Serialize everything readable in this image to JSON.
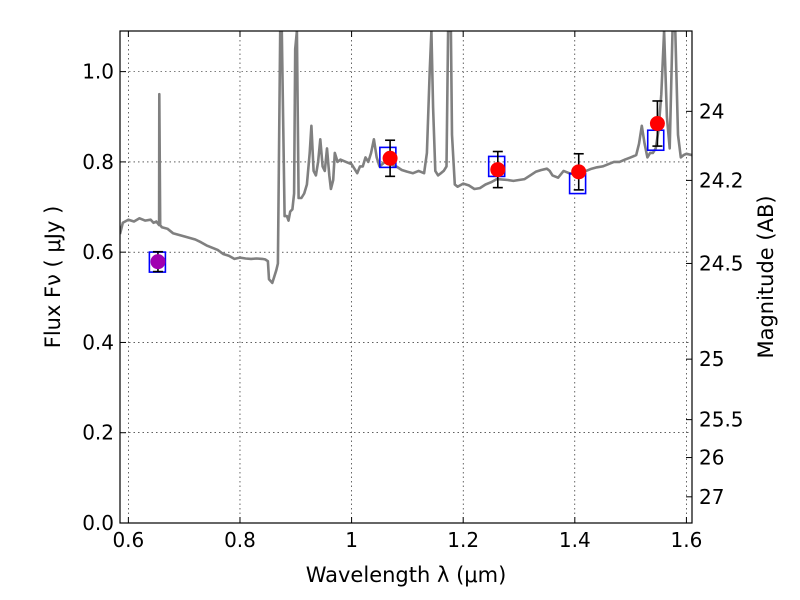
{
  "chart_data": {
    "type": "scatter",
    "xlabel": "Wavelength  λ (μm)",
    "ylabel": "Flux  Fν  ( μJy )",
    "y2label": "Magnitude (AB)",
    "xlim": [
      0.585,
      1.61
    ],
    "ylim": [
      0.0,
      1.09
    ],
    "grid": true,
    "x_ticks": [
      0.6,
      0.8,
      1.0,
      1.2,
      1.4,
      1.6
    ],
    "x_tick_labels": [
      "0.6",
      "0.8",
      "1",
      "1.2",
      "1.4",
      "1.6"
    ],
    "y_ticks": [
      0.0,
      0.2,
      0.4,
      0.6,
      0.8,
      1.0
    ],
    "y_tick_labels": [
      "0.0",
      "0.2",
      "0.4",
      "0.6",
      "0.8",
      "1.0"
    ],
    "y2_ticks": [
      {
        "label": "24",
        "flux": 0.912
      },
      {
        "label": "24.2",
        "flux": 0.759
      },
      {
        "label": "24.5",
        "flux": 0.575
      },
      {
        "label": "25",
        "flux": 0.363
      },
      {
        "label": "25.5",
        "flux": 0.229
      },
      {
        "label": "26",
        "flux": 0.145
      },
      {
        "label": "27",
        "flux": 0.058
      }
    ],
    "series": [
      {
        "style": "line",
        "color": "#808080",
        "points": [
          [
            0.585,
            0.64
          ],
          [
            0.59,
            0.665
          ],
          [
            0.6,
            0.672
          ],
          [
            0.61,
            0.668
          ],
          [
            0.62,
            0.675
          ],
          [
            0.63,
            0.67
          ],
          [
            0.64,
            0.672
          ],
          [
            0.645,
            0.665
          ],
          [
            0.65,
            0.668
          ],
          [
            0.655,
            0.66
          ],
          [
            0.6555,
            0.95
          ],
          [
            0.657,
            0.66
          ],
          [
            0.66,
            0.655
          ],
          [
            0.67,
            0.652
          ],
          [
            0.68,
            0.642
          ],
          [
            0.7,
            0.635
          ],
          [
            0.72,
            0.628
          ],
          [
            0.73,
            0.622
          ],
          [
            0.74,
            0.615
          ],
          [
            0.75,
            0.61
          ],
          [
            0.76,
            0.605
          ],
          [
            0.77,
            0.596
          ],
          [
            0.78,
            0.592
          ],
          [
            0.79,
            0.585
          ],
          [
            0.8,
            0.588
          ],
          [
            0.81,
            0.586
          ],
          [
            0.82,
            0.585
          ],
          [
            0.83,
            0.586
          ],
          [
            0.84,
            0.585
          ],
          [
            0.845,
            0.584
          ],
          [
            0.85,
            0.58
          ],
          [
            0.852,
            0.54
          ],
          [
            0.858,
            0.532
          ],
          [
            0.865,
            0.56
          ],
          [
            0.868,
            0.575
          ],
          [
            0.872,
            1.09
          ],
          [
            0.875,
            1.09
          ],
          [
            0.88,
            0.68
          ],
          [
            0.884,
            0.68
          ],
          [
            0.887,
            0.67
          ],
          [
            0.89,
            0.69
          ],
          [
            0.894,
            0.695
          ],
          [
            0.897,
            0.73
          ],
          [
            0.899,
            1.05
          ],
          [
            0.902,
            1.09
          ],
          [
            0.905,
            0.72
          ],
          [
            0.91,
            0.72
          ],
          [
            0.915,
            0.73
          ],
          [
            0.92,
            0.75
          ],
          [
            0.925,
            0.82
          ],
          [
            0.928,
            0.88
          ],
          [
            0.932,
            0.78
          ],
          [
            0.936,
            0.77
          ],
          [
            0.94,
            0.8
          ],
          [
            0.944,
            0.85
          ],
          [
            0.948,
            0.79
          ],
          [
            0.952,
            0.78
          ],
          [
            0.956,
            0.83
          ],
          [
            0.96,
            0.77
          ],
          [
            0.963,
            0.74
          ],
          [
            0.967,
            0.76
          ],
          [
            0.97,
            0.82
          ],
          [
            0.975,
            0.8
          ],
          [
            0.98,
            0.805
          ],
          [
            0.99,
            0.8
          ],
          [
            1.0,
            0.795
          ],
          [
            1.005,
            0.785
          ],
          [
            1.01,
            0.775
          ],
          [
            1.015,
            0.79
          ],
          [
            1.02,
            0.79
          ],
          [
            1.025,
            0.81
          ],
          [
            1.03,
            0.8
          ],
          [
            1.035,
            0.82
          ],
          [
            1.04,
            0.85
          ],
          [
            1.045,
            0.81
          ],
          [
            1.05,
            0.79
          ],
          [
            1.06,
            0.8
          ],
          [
            1.07,
            0.795
          ],
          [
            1.08,
            0.79
          ],
          [
            1.09,
            0.782
          ],
          [
            1.1,
            0.778
          ],
          [
            1.11,
            0.775
          ],
          [
            1.12,
            0.78
          ],
          [
            1.13,
            0.775
          ],
          [
            1.135,
            0.82
          ],
          [
            1.14,
            1.0
          ],
          [
            1.143,
            1.09
          ],
          [
            1.146,
            0.92
          ],
          [
            1.15,
            0.78
          ],
          [
            1.155,
            0.77
          ],
          [
            1.16,
            0.775
          ],
          [
            1.165,
            0.78
          ],
          [
            1.17,
            0.79
          ],
          [
            1.173,
            1.09
          ],
          [
            1.178,
            1.09
          ],
          [
            1.18,
            0.86
          ],
          [
            1.185,
            0.75
          ],
          [
            1.19,
            0.745
          ],
          [
            1.2,
            0.752
          ],
          [
            1.21,
            0.748
          ],
          [
            1.22,
            0.74
          ],
          [
            1.23,
            0.742
          ],
          [
            1.24,
            0.75
          ],
          [
            1.25,
            0.755
          ],
          [
            1.26,
            0.762
          ],
          [
            1.28,
            0.76
          ],
          [
            1.29,
            0.758
          ],
          [
            1.3,
            0.76
          ],
          [
            1.31,
            0.762
          ],
          [
            1.32,
            0.77
          ],
          [
            1.33,
            0.778
          ],
          [
            1.34,
            0.782
          ],
          [
            1.35,
            0.785
          ],
          [
            1.355,
            0.78
          ],
          [
            1.36,
            0.77
          ],
          [
            1.37,
            0.765
          ],
          [
            1.38,
            0.78
          ],
          [
            1.39,
            0.775
          ],
          [
            1.4,
            0.772
          ],
          [
            1.41,
            0.774
          ],
          [
            1.42,
            0.78
          ],
          [
            1.43,
            0.785
          ],
          [
            1.44,
            0.788
          ],
          [
            1.45,
            0.79
          ],
          [
            1.46,
            0.795
          ],
          [
            1.47,
            0.8
          ],
          [
            1.48,
            0.8
          ],
          [
            1.49,
            0.805
          ],
          [
            1.5,
            0.81
          ],
          [
            1.51,
            0.815
          ],
          [
            1.515,
            0.84
          ],
          [
            1.52,
            0.88
          ],
          [
            1.525,
            0.84
          ],
          [
            1.53,
            0.81
          ],
          [
            1.535,
            0.82
          ],
          [
            1.54,
            0.82
          ],
          [
            1.545,
            0.83
          ],
          [
            1.55,
            0.87
          ],
          [
            1.555,
            0.95
          ],
          [
            1.56,
            1.09
          ],
          [
            1.565,
            0.9
          ],
          [
            1.57,
            0.83
          ],
          [
            1.575,
            1.09
          ],
          [
            1.58,
            1.09
          ],
          [
            1.585,
            0.86
          ],
          [
            1.59,
            0.81
          ],
          [
            1.595,
            0.815
          ],
          [
            1.6,
            0.818
          ],
          [
            1.61,
            0.815
          ]
        ]
      },
      {
        "style": "open-square",
        "color": "#0000ff",
        "x": [
          0.652,
          1.065,
          1.26,
          1.405,
          1.545
        ],
        "y": [
          0.578,
          0.81,
          0.79,
          0.752,
          0.848
        ]
      },
      {
        "style": "filled-circle",
        "color": "#ff0000",
        "x": [
          0.653,
          1.069,
          1.262,
          1.407,
          1.548
        ],
        "y": [
          0.579,
          0.808,
          0.783,
          0.778,
          0.885
        ],
        "errors": [
          0.022,
          0.04,
          0.04,
          0.04,
          0.05
        ]
      }
    ]
  }
}
